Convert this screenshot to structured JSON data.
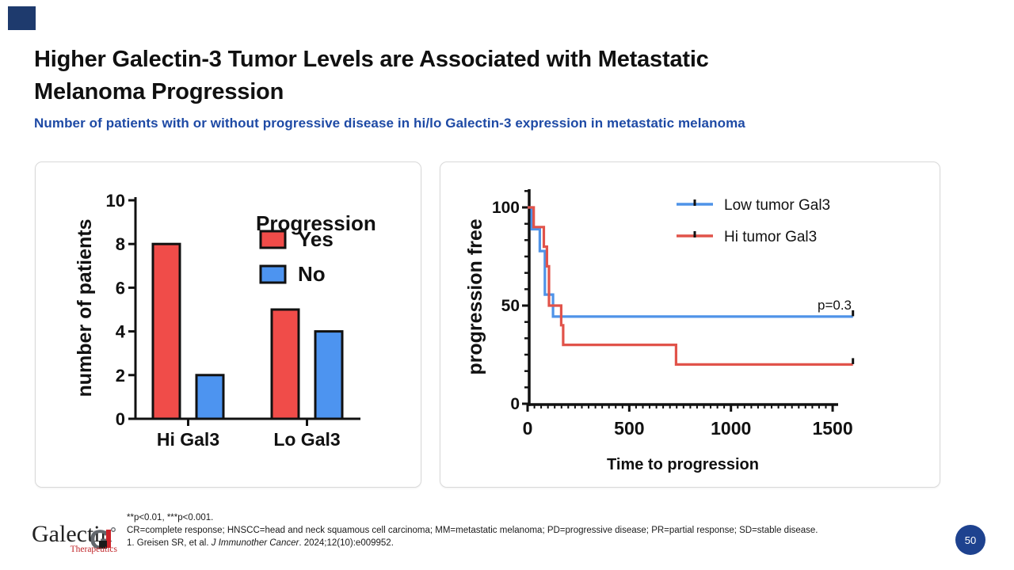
{
  "slide": {
    "title_lines": [
      "Higher Galectin-3 Tumor Levels are Associated with Metastatic",
      "Melanoma Progression"
    ],
    "subtitle": "Number of patients with or without progressive disease in hi/lo Galectin-3 expression in metastatic melanoma",
    "subtitle_color": "#1e4aa5",
    "accent_color": "#1e3a6d",
    "page_number": "50",
    "page_badge_color": "#1e428f"
  },
  "footer": {
    "logo_name": "Galectin",
    "logo_sub": "Therapeutics",
    "logo_sub_color": "#c02428",
    "footnote_line1": "**p<0.01, ***p<0.001.",
    "footnote_line2": "CR=complete response; HNSCC=head and neck squamous cell carcinoma; MM=metastatic melanoma; PD=progressive disease; PR=partial response; SD=stable disease.",
    "reference": {
      "prefix": "1. Greisen SR, et al. ",
      "journal": "J Immunother Cancer",
      "suffix": ". 2024;12(10):e009952."
    }
  },
  "chart_data": [
    {
      "type": "bar",
      "ylabel": "number of patients",
      "ylim": [
        0,
        10
      ],
      "yticks": [
        0,
        2,
        4,
        6,
        8,
        10
      ],
      "categories": [
        "Hi Gal3",
        "Lo Gal3"
      ],
      "legend_title": "Progression",
      "series": [
        {
          "name": "Yes",
          "color": "#f04c49",
          "values": [
            8,
            5
          ]
        },
        {
          "name": "No",
          "color": "#4d94f0",
          "values": [
            2,
            4
          ]
        }
      ],
      "grid": false,
      "legend_position": "top-right-inside"
    },
    {
      "type": "line",
      "subtype": "kaplan-meier-step",
      "xlabel": "Time to progression",
      "ylabel": "progression free",
      "xlim": [
        0,
        1500
      ],
      "xticks": [
        0,
        500,
        1000,
        1500
      ],
      "ylim": [
        0,
        100
      ],
      "yticks": [
        0,
        50,
        100
      ],
      "annotation": "p=0.3",
      "grid": false,
      "legend_position": "top-center-inside",
      "series": [
        {
          "name": "Low tumor Gal3",
          "color": "#4f93e8",
          "steps": [
            [
              0,
              100
            ],
            [
              20,
              88.9
            ],
            [
              60,
              77.8
            ],
            [
              85,
              55.6
            ],
            [
              125,
              44.4
            ]
          ],
          "end_x": 1600,
          "censored_at_end": true
        },
        {
          "name": "Hi tumor Gal3",
          "color": "#e1534a",
          "steps": [
            [
              0,
              100
            ],
            [
              30,
              90
            ],
            [
              80,
              80
            ],
            [
              95,
              70
            ],
            [
              105,
              50
            ],
            [
              165,
              40
            ],
            [
              175,
              30
            ],
            [
              730,
              20
            ]
          ],
          "end_x": 1600,
          "censored_at_end": true
        }
      ]
    }
  ]
}
